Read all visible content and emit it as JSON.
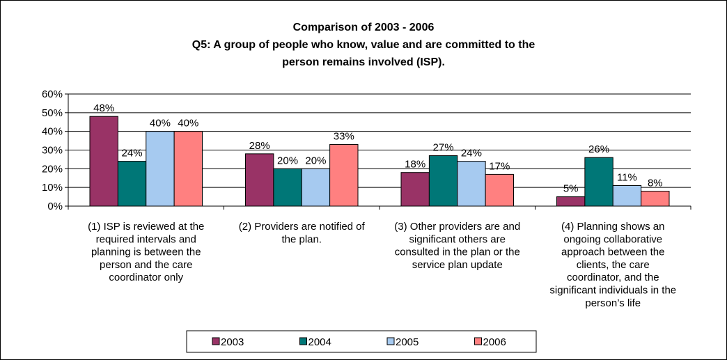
{
  "chart_data": {
    "type": "bar",
    "title_lines": [
      "Comparison of 2003 - 2006",
      "Q5: A group of people who know, value and are committed to the",
      "person remains involved (ISP)."
    ],
    "categories": [
      [
        "(1) ISP is reviewed at the",
        "required intervals and",
        "planning is between the",
        "person and the care",
        "coordinator only"
      ],
      [
        "(2) Providers are notified of",
        "the plan."
      ],
      [
        "(3) Other providers are and",
        "significant others are",
        "consulted in the plan or the",
        "service plan update"
      ],
      [
        "(4) Planning shows an",
        "ongoing collaborative",
        "approach between the",
        "clients, the care",
        "coordinator, and the",
        "significant individuals in the",
        "person’s life"
      ]
    ],
    "series": [
      {
        "name": "2003",
        "color": "#993366",
        "values": [
          48,
          28,
          18,
          5
        ],
        "labels": [
          "48%",
          "28%",
          "18%",
          "5%"
        ]
      },
      {
        "name": "2004",
        "color": "#007777",
        "values": [
          24,
          20,
          27,
          26
        ],
        "labels": [
          "24%",
          "20%",
          "27%",
          "26%"
        ]
      },
      {
        "name": "2005",
        "color": "#A6CAF0",
        "values": [
          40,
          20,
          24,
          11
        ],
        "labels": [
          "40%",
          "20%",
          "24%",
          "11%"
        ]
      },
      {
        "name": "2006",
        "color": "#FF8080",
        "values": [
          40,
          33,
          17,
          8
        ],
        "labels": [
          "40%",
          "33%",
          "17%",
          "8%"
        ]
      }
    ],
    "ylim": [
      0,
      60
    ],
    "yticks": [
      "0%",
      "10%",
      "20%",
      "30%",
      "40%",
      "50%",
      "60%"
    ],
    "grid": true,
    "legend_position": "bottom"
  }
}
